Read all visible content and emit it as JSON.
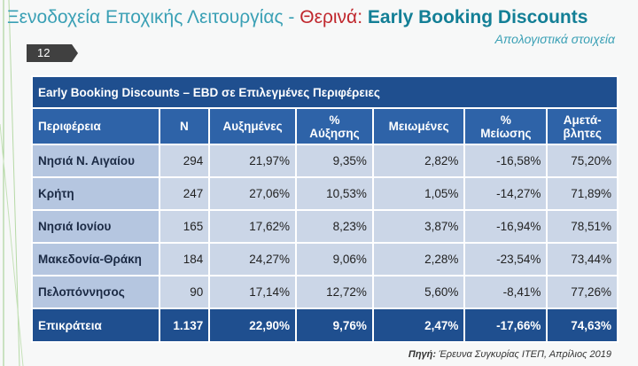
{
  "header": {
    "title_part1": "Ξενοδοχεία Εποχικής Λειτουργίας - ",
    "title_part2": "Θερινά:",
    "title_part3": " Early Booking Discounts",
    "subtitle": "Απολογιστικά στοιχεία",
    "page_number": "12"
  },
  "table": {
    "caption": "Early Booking Discounts – EBD σε Επιλεγμένες Περιφέρειες",
    "columns": [
      "Περιφέρεια",
      "N",
      "Αυξημένες",
      "%\nΑύξησης",
      "Μειωμένες",
      "%\nΜείωσης",
      "Αμετά-\nβλητες"
    ],
    "rows": [
      [
        "Νησιά Ν. Αιγαίου",
        "294",
        "21,97%",
        "9,35%",
        "2,82%",
        "-16,58%",
        "75,20%"
      ],
      [
        "Κρήτη",
        "247",
        "27,06%",
        "10,53%",
        "1,05%",
        "-14,27%",
        "71,89%"
      ],
      [
        "Νησιά Ιονίου",
        "165",
        "17,62%",
        "8,23%",
        "3,87%",
        "-16,94%",
        "78,51%"
      ],
      [
        "Μακεδονία-Θράκη",
        "184",
        "24,27%",
        "9,06%",
        "2,28%",
        "-23,54%",
        "73,44%"
      ],
      [
        "Πελοπόννησος",
        "90",
        "17,14%",
        "12,72%",
        "5,60%",
        "-8,41%",
        "77,26%"
      ]
    ],
    "total": [
      "Επικράτεια",
      "1.137",
      "22,90%",
      "9,76%",
      "2,47%",
      "-17,66%",
      "74,63%"
    ]
  },
  "source": {
    "label": "Πηγή:",
    "text": " Έρευνα Συγκυρίας ΙΤΕΠ, Απρίλιος 2019"
  }
}
